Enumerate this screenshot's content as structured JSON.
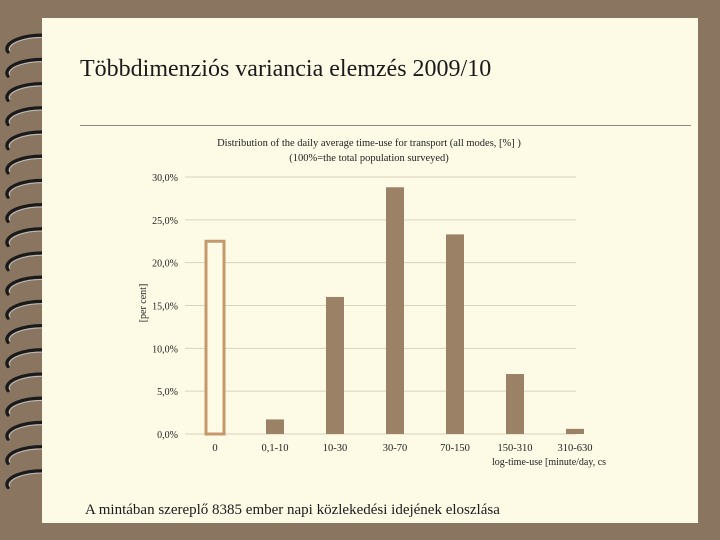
{
  "slide": {
    "title": "Többdimenziós variancia elemzés 2009/10",
    "caption": "A mintában szereplő 8385 ember napi közlekedési idejének eloszlása"
  },
  "colors": {
    "page_bg": "#fdfbe6",
    "bar": "#9b8166",
    "highlight_bar_outline": "#c49a6c",
    "gridline": "#d8d2be"
  },
  "chart_data": {
    "type": "bar",
    "title": "Distribution of the daily average time-use for transport (all modes,  [%] )",
    "subtitle": "(100%=the total population surveyed)",
    "ylabel": "[per cent]",
    "xlabel": "log-time-use [minute/day, cs",
    "categories": [
      "0",
      "0,1-10",
      "10-30",
      "30-70",
      "70-150",
      "150-310",
      "310-630"
    ],
    "values": [
      22.5,
      1.7,
      16.0,
      28.8,
      23.3,
      7.0,
      0.6
    ],
    "highlight_category": "0",
    "ylim": [
      0,
      30
    ],
    "yticks": [
      0,
      5,
      10,
      15,
      20,
      25,
      30
    ],
    "ytick_labels": [
      "0,0%",
      "5,0%",
      "10,0%",
      "15,0%",
      "20,0%",
      "25,0%",
      "30,0%"
    ],
    "grid": true,
    "legend": "none"
  }
}
